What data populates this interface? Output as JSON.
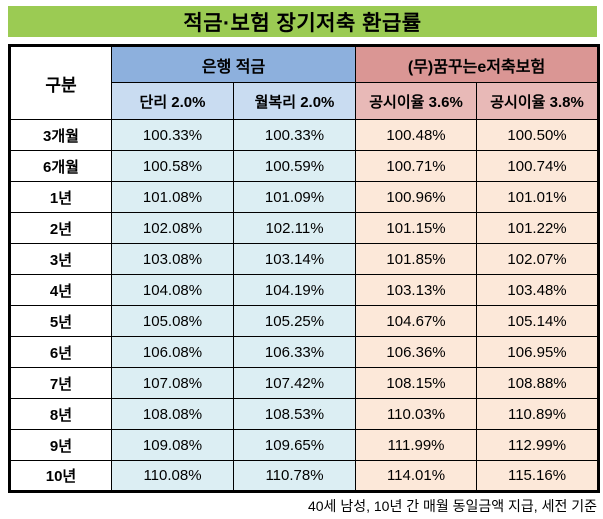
{
  "title": "적금·보험 장기저축 환급률",
  "footnote": "40세 남성, 10년 간 매월 동일금액 지급, 세전 기준",
  "colors": {
    "title_bg": "#9BCB53",
    "bank_header_bg": "#8DB0DD",
    "bank_subheader_bg": "#C9DCF1",
    "bank_cell_bg": "#DCEEF3",
    "insurance_header_bg": "#DA9694",
    "insurance_subheader_bg": "#E8B9B7",
    "insurance_cell_bg": "#FCE8D9",
    "border": "#000000",
    "text": "#000000"
  },
  "table": {
    "corner_label": "구분",
    "groups": [
      {
        "label": "은행 적금",
        "subcols": [
          "단리 2.0%",
          "월복리 2.0%"
        ]
      },
      {
        "label": "(무)꿈꾸는e저축보험",
        "subcols": [
          "공시이율 3.6%",
          "공시이율 3.8%"
        ]
      }
    ],
    "rows": [
      {
        "label": "3개월",
        "values": [
          "100.33%",
          "100.33%",
          "100.48%",
          "100.50%"
        ]
      },
      {
        "label": "6개월",
        "values": [
          "100.58%",
          "100.59%",
          "100.71%",
          "100.74%"
        ]
      },
      {
        "label": "1년",
        "values": [
          "101.08%",
          "101.09%",
          "100.96%",
          "101.01%"
        ]
      },
      {
        "label": "2년",
        "values": [
          "102.08%",
          "102.11%",
          "101.15%",
          "101.22%"
        ]
      },
      {
        "label": "3년",
        "values": [
          "103.08%",
          "103.14%",
          "101.85%",
          "102.07%"
        ]
      },
      {
        "label": "4년",
        "values": [
          "104.08%",
          "104.19%",
          "103.13%",
          "103.48%"
        ]
      },
      {
        "label": "5년",
        "values": [
          "105.08%",
          "105.25%",
          "104.67%",
          "105.14%"
        ]
      },
      {
        "label": "6년",
        "values": [
          "106.08%",
          "106.33%",
          "106.36%",
          "106.95%"
        ]
      },
      {
        "label": "7년",
        "values": [
          "107.08%",
          "107.42%",
          "108.15%",
          "108.88%"
        ]
      },
      {
        "label": "8년",
        "values": [
          "108.08%",
          "108.53%",
          "110.03%",
          "110.89%"
        ]
      },
      {
        "label": "9년",
        "values": [
          "109.08%",
          "109.65%",
          "111.99%",
          "112.99%"
        ]
      },
      {
        "label": "10년",
        "values": [
          "110.08%",
          "110.78%",
          "114.01%",
          "115.16%"
        ]
      }
    ]
  },
  "chart_data": {
    "type": "table",
    "title": "적금·보험 장기저축 환급률",
    "columns": [
      "구분",
      "은행 적금 · 단리 2.0%",
      "은행 적금 · 월복리 2.0%",
      "(무)꿈꾸는e저축보험 · 공시이율 3.6%",
      "(무)꿈꾸는e저축보험 · 공시이율 3.8%"
    ],
    "rows": [
      [
        "3개월",
        "100.33%",
        "100.33%",
        "100.48%",
        "100.50%"
      ],
      [
        "6개월",
        "100.58%",
        "100.59%",
        "100.71%",
        "100.74%"
      ],
      [
        "1년",
        "101.08%",
        "101.09%",
        "100.96%",
        "101.01%"
      ],
      [
        "2년",
        "102.08%",
        "102.11%",
        "101.15%",
        "101.22%"
      ],
      [
        "3년",
        "103.08%",
        "103.14%",
        "101.85%",
        "102.07%"
      ],
      [
        "4년",
        "104.08%",
        "104.19%",
        "103.13%",
        "103.48%"
      ],
      [
        "5년",
        "105.08%",
        "105.25%",
        "104.67%",
        "105.14%"
      ],
      [
        "6년",
        "106.08%",
        "106.33%",
        "106.36%",
        "106.95%"
      ],
      [
        "7년",
        "107.08%",
        "107.42%",
        "108.15%",
        "108.88%"
      ],
      [
        "8년",
        "108.08%",
        "108.53%",
        "110.03%",
        "110.89%"
      ],
      [
        "9년",
        "109.08%",
        "109.65%",
        "111.99%",
        "112.99%"
      ],
      [
        "10년",
        "110.08%",
        "110.78%",
        "114.01%",
        "115.16%"
      ]
    ],
    "footnote": "40세 남성, 10년 간 매월 동일금액 지급, 세전 기준"
  }
}
